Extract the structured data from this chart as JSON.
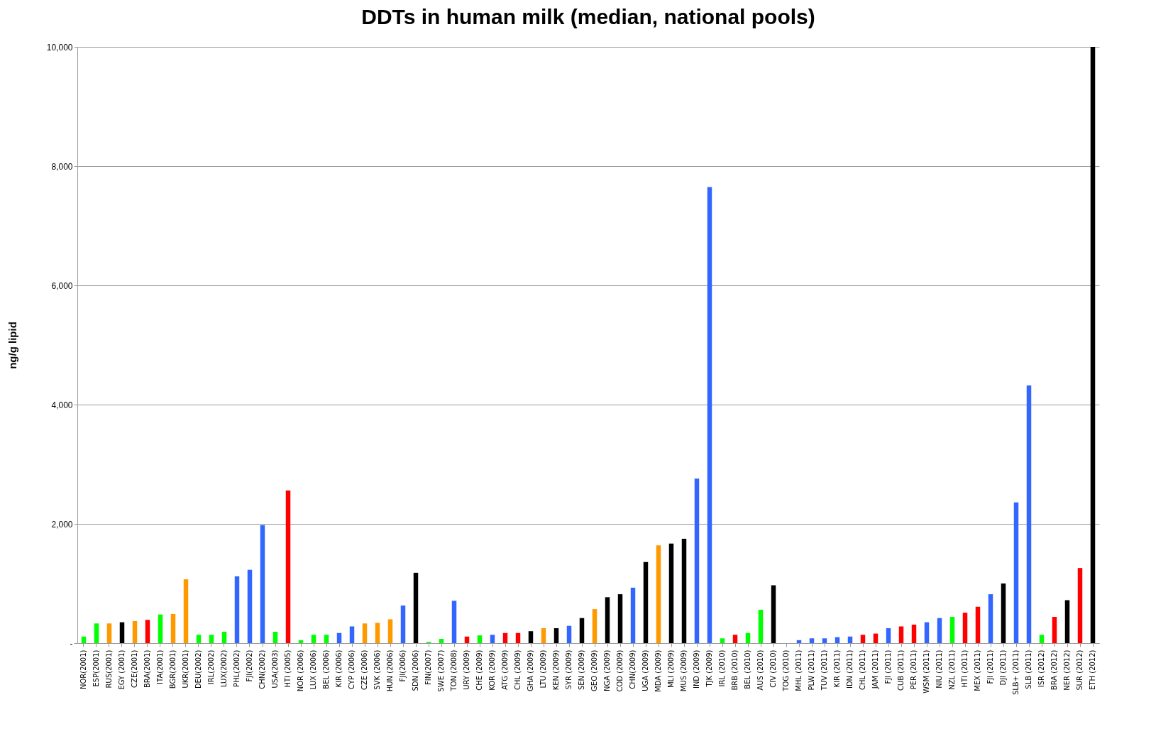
{
  "chart_data": {
    "type": "bar",
    "title": "DDTs in human milk (median, national pools)",
    "ylabel": "ng/g lipid",
    "categories": [
      "NOR(2001)",
      "ESP(2001)",
      "RUS(2001)",
      "EGY (2001)",
      "CZE(2001)",
      "BRA(2001)",
      "ITA(2001)",
      "BGR(2001)",
      "UKR(2001)",
      "DEU(2002)",
      "IRL(2002)",
      "LUX(2002)",
      "PHL(2002)",
      "FJI(2002)",
      "CHN(2002)",
      "USA(2003)",
      "HTI (2005)",
      "NOR (2006)",
      "LUX (2006)",
      "BEL (2006)",
      "KIR (2006)",
      "CYP (2006)",
      "CZE (2006)",
      "SVK (2006)",
      "HUN (2006)",
      "FJI(2006)",
      "SDN (2006)",
      "FIN(2007)",
      "SWE (2007)",
      "TON (2008)",
      "URY (2009)",
      "CHE (2009)",
      "KOR (2009)",
      "ATG (2009)",
      "CHL (2009)",
      "GHA (2009)",
      "LTU (2009)",
      "KEN (2009)",
      "SYR (2009)",
      "SEN (2009)",
      "GEO (2009)",
      "NGA (2009)",
      "COD (2009)",
      "CHN(2009)",
      "UGA (2009)",
      "MDA (2009)",
      "MLI (2009)",
      "MUS (2009)",
      "IND (2009)",
      "TJK (2009)",
      "IRL (2010)",
      "BRB (2010)",
      "BEL (2010)",
      "AUS (2010)",
      "CIV (2010)",
      "TOG (2010)",
      "MHL (2011)",
      "PLW (2011)",
      "TUV (2011)",
      "KIR (2011)",
      "IDN (2011)",
      "CHL (2011)",
      "JAM (2011)",
      "FJI (2011)",
      "CUB (2011)",
      "PER (2011)",
      "WSM (2011)",
      "NIU (2011)",
      "NZL (2011)",
      "HTI (2011)",
      "MEX (2011)",
      "FJI (2011)",
      "DJI (2011)",
      "SLB+ (2011)",
      "SLB (2011)",
      "ISR (2012)",
      "BRA (2012)",
      "NER (2012)",
      "SUR (2012)",
      "ETH (2012)"
    ],
    "values": [
      110,
      330,
      330,
      350,
      370,
      390,
      480,
      490,
      1070,
      140,
      140,
      190,
      1120,
      1230,
      1980,
      190,
      2560,
      50,
      140,
      140,
      170,
      280,
      330,
      340,
      400,
      630,
      1180,
      20,
      70,
      710,
      110,
      130,
      140,
      170,
      170,
      200,
      250,
      250,
      290,
      420,
      570,
      770,
      820,
      930,
      1360,
      1640,
      1670,
      1750,
      2760,
      7650,
      80,
      140,
      170,
      560,
      970,
      0,
      50,
      80,
      80,
      100,
      110,
      140,
      160,
      250,
      280,
      310,
      350,
      420,
      440,
      510,
      610,
      820,
      1000,
      2360,
      4320,
      140,
      440,
      720,
      1260,
      10000
    ],
    "colors": [
      "#00ff00",
      "#00ff00",
      "#ff9900",
      "#000000",
      "#ff9900",
      "#ff0000",
      "#00ff00",
      "#ff9900",
      "#ff9900",
      "#00ff00",
      "#00ff00",
      "#00ff00",
      "#3366ff",
      "#3366ff",
      "#3366ff",
      "#00ff00",
      "#ff0000",
      "#00ff00",
      "#00ff00",
      "#00ff00",
      "#3366ff",
      "#3366ff",
      "#ff9900",
      "#ff9900",
      "#ff9900",
      "#3366ff",
      "#000000",
      "#00ff00",
      "#00ff00",
      "#3366ff",
      "#ff0000",
      "#00ff00",
      "#3366ff",
      "#ff0000",
      "#ff0000",
      "#000000",
      "#ff9900",
      "#000000",
      "#3366ff",
      "#000000",
      "#ff9900",
      "#000000",
      "#000000",
      "#3366ff",
      "#000000",
      "#ff9900",
      "#000000",
      "#000000",
      "#3366ff",
      "#3366ff",
      "#00ff00",
      "#ff0000",
      "#00ff00",
      "#00ff00",
      "#000000",
      "#3366ff",
      "#3366ff",
      "#3366ff",
      "#3366ff",
      "#3366ff",
      "#3366ff",
      "#ff0000",
      "#ff0000",
      "#3366ff",
      "#ff0000",
      "#ff0000",
      "#3366ff",
      "#3366ff",
      "#00ff00",
      "#ff0000",
      "#ff0000",
      "#3366ff",
      "#000000",
      "#3366ff",
      "#3366ff",
      "#00ff00",
      "#ff0000",
      "#000000",
      "#ff0000",
      "#000000"
    ],
    "ylim": [
      0,
      10000
    ],
    "yticks": [
      {
        "value": 0,
        "label": "-"
      },
      {
        "value": 2000,
        "label": "2,000"
      },
      {
        "value": 4000,
        "label": "4,000"
      },
      {
        "value": 6000,
        "label": "6,000"
      },
      {
        "value": 8000,
        "label": "8,000"
      },
      {
        "value": 10000,
        "label": "10,000"
      }
    ],
    "grid": "y"
  }
}
